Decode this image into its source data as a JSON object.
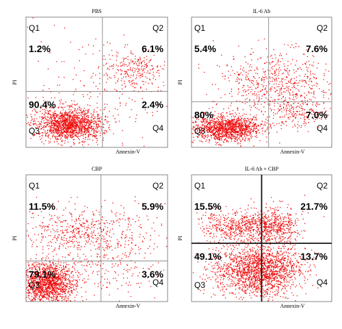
{
  "panels": [
    {
      "title": "PBS",
      "x_label": "Annexin-V",
      "y_label": "PI",
      "quadrants": [
        {
          "label": "Q1",
          "percent": "1.2%"
        },
        {
          "label": "Q2",
          "percent": "6.1%"
        },
        {
          "label": "Q3",
          "percent": "90.4%"
        },
        {
          "label": "Q4",
          "percent": "2.4%"
        }
      ]
    },
    {
      "title": "IL-6 Ab",
      "x_label": "Annexin-V",
      "y_label": "PI",
      "quadrants": [
        {
          "label": "Q1",
          "percent": "5.4%"
        },
        {
          "label": "Q2",
          "percent": "7.6%"
        },
        {
          "label": "Q3",
          "percent": "80%"
        },
        {
          "label": "Q4",
          "percent": "7.0%"
        }
      ]
    },
    {
      "title": "CBP",
      "x_label": "Annexin-V",
      "y_label": "PI",
      "quadrants": [
        {
          "label": "Q1",
          "percent": "11.5%"
        },
        {
          "label": "Q2",
          "percent": "5.9%"
        },
        {
          "label": "Q3",
          "percent": "79.1%"
        },
        {
          "label": "Q4",
          "percent": "3.6%"
        }
      ]
    },
    {
      "title": "IL-6 Ab + CBP",
      "x_label": "Annexin-V",
      "y_label": "PI",
      "quadrants": [
        {
          "label": "Q1",
          "percent": "15.5%"
        },
        {
          "label": "Q2",
          "percent": "21.7%"
        },
        {
          "label": "Q3",
          "percent": "49.1%"
        },
        {
          "label": "Q4",
          "percent": "13.7%"
        }
      ]
    }
  ]
}
